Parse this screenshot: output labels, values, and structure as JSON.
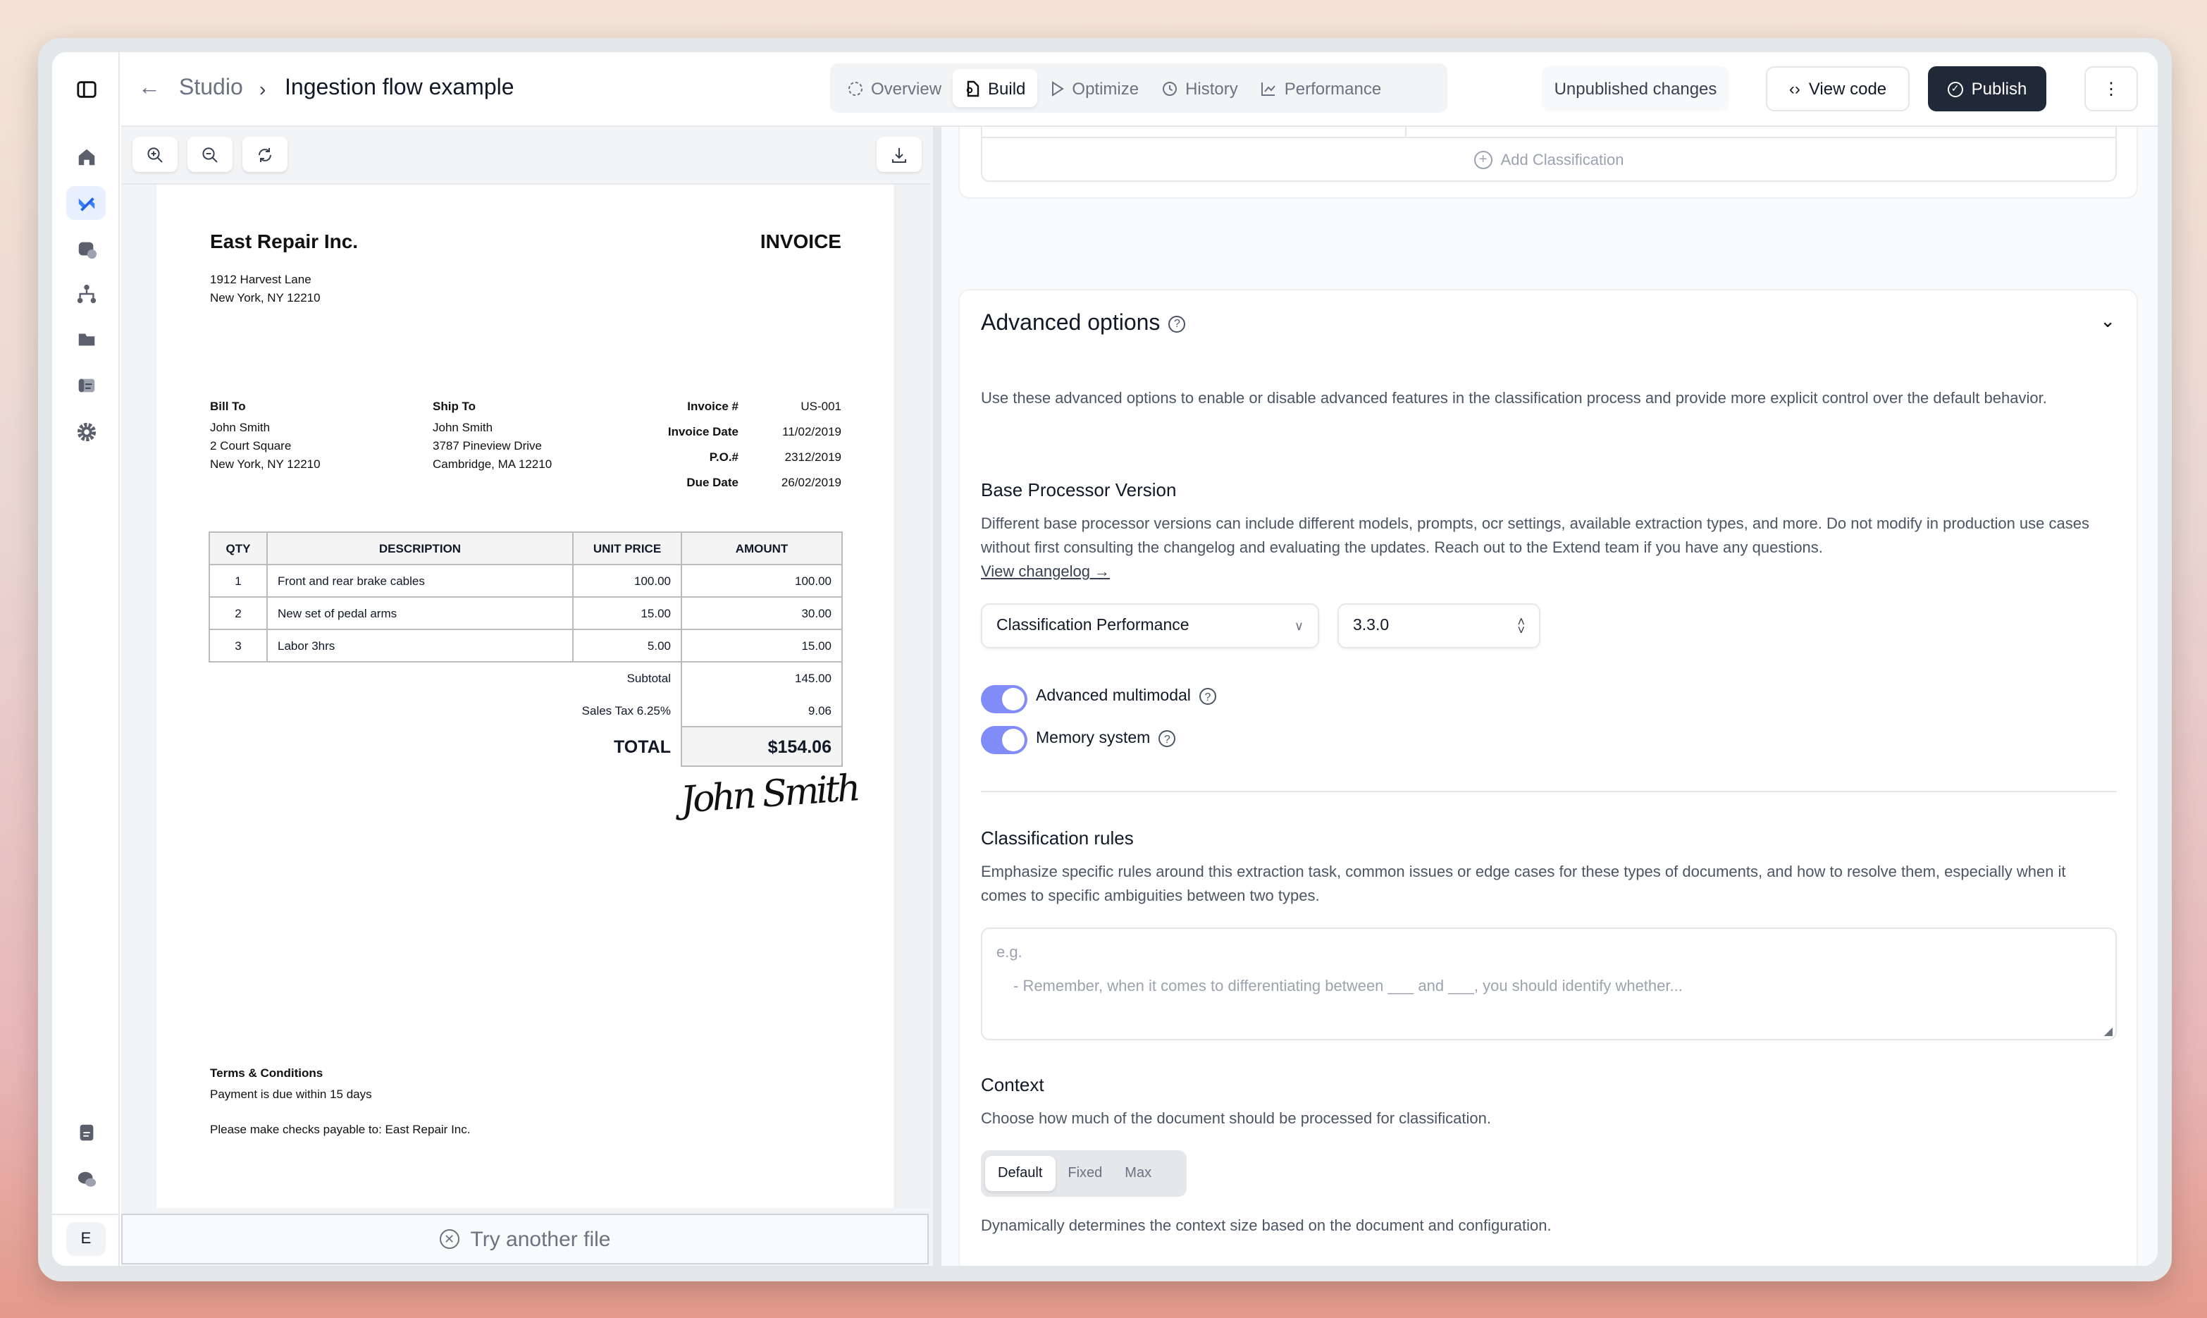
{
  "header": {
    "back_icon": "arrow-left-icon",
    "breadcrumb_root": "Studio",
    "title": "Ingestion flow example",
    "tabs": [
      {
        "label": "Overview",
        "icon": "loader-circle-icon"
      },
      {
        "label": "Build",
        "icon": "file-cog-icon",
        "active": true
      },
      {
        "label": "Optimize",
        "icon": "play-icon"
      },
      {
        "label": "History",
        "icon": "history-icon"
      },
      {
        "label": "Performance",
        "icon": "chart-icon"
      }
    ],
    "status": "Unpublished changes",
    "view_code": "View code",
    "publish": "Publish"
  },
  "sidebar": {
    "items": [
      "panel-toggle",
      "home",
      "build",
      "database-check",
      "workflow",
      "folder",
      "logs",
      "settings",
      "docs",
      "chat"
    ],
    "active": "build",
    "user_initial": "E"
  },
  "viewer": {
    "try_another": "Try another file"
  },
  "invoice": {
    "company": "East Repair Inc.",
    "doc_title": "INVOICE",
    "address1": "1912 Harvest Lane",
    "address2": "New York, NY 12210",
    "bill_to": {
      "label": "Bill To",
      "name": "John Smith",
      "line1": "2 Court Square",
      "line2": "New York, NY 12210"
    },
    "ship_to": {
      "label": "Ship To",
      "name": "John Smith",
      "line1": "3787 Pineview Drive",
      "line2": "Cambridge, MA 12210"
    },
    "meta": [
      {
        "k": "Invoice #",
        "v": "US-001"
      },
      {
        "k": "Invoice Date",
        "v": "11/02/2019"
      },
      {
        "k": "P.O.#",
        "v": "2312/2019"
      },
      {
        "k": "Due Date",
        "v": "26/02/2019"
      }
    ],
    "columns": [
      "QTY",
      "DESCRIPTION",
      "UNIT PRICE",
      "AMOUNT"
    ],
    "rows": [
      [
        "1",
        "Front and rear brake cables",
        "100.00",
        "100.00"
      ],
      [
        "2",
        "New set of pedal arms",
        "15.00",
        "30.00"
      ],
      [
        "3",
        "Labor 3hrs",
        "5.00",
        "15.00"
      ]
    ],
    "subtotal_label": "Subtotal",
    "subtotal": "145.00",
    "tax_label": "Sales Tax 6.25%",
    "tax": "9.06",
    "total_label": "TOTAL",
    "total": "$154.06",
    "signature": "John Smith",
    "terms_title": "Terms & Conditions",
    "terms_line": "Payment is due within 15 days",
    "payable": "Please make checks payable to: East Repair Inc."
  },
  "config": {
    "add_classification": "Add Classification",
    "advanced": {
      "title": "Advanced options",
      "description": "Use these advanced options to enable or disable advanced features in the classification process and provide more explicit control over the default behavior.",
      "base_title": "Base Processor Version",
      "base_desc": "Different base processor versions can include different models, prompts, ocr settings, available extraction types, and more. Do not modify in production use cases without first consulting the changelog and evaluating the updates. Reach out to the Extend team if you have any questions.",
      "changelog": "View changelog →",
      "processor": "Classification Performance",
      "version": "3.3.0",
      "toggles": [
        {
          "label": "Advanced multimodal",
          "on": true
        },
        {
          "label": "Memory system",
          "on": true
        }
      ],
      "rules_title": "Classification rules",
      "rules_desc": "Emphasize specific rules around this extraction task, common issues or edge cases for these types of documents, and how to resolve them, especially when it comes to specific ambiguities between two types.",
      "rules_placeholder_1": "e.g.",
      "rules_placeholder_2": "- Remember, when it comes to differentiating between ___ and ___, you should identify whether...",
      "context_title": "Context",
      "context_desc": "Choose how much of the document should be processed for classification.",
      "context_options": [
        "Default",
        "Fixed",
        "Max"
      ],
      "context_selected": "Default",
      "context_note": "Dynamically determines the context size based on the document and configuration."
    }
  },
  "colors": {
    "accent": "#818cf8",
    "publish_bg": "#1f2937",
    "active_nav": "#2563eb"
  }
}
